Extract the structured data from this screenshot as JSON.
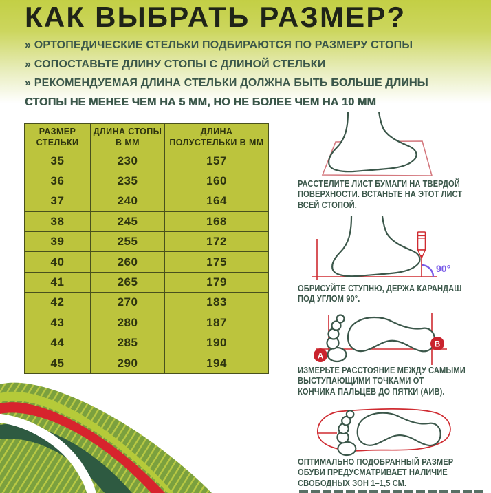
{
  "page": {
    "title": "КАК ВЫБРАТЬ РАЗМЕР?"
  },
  "bullets": [
    {
      "marker": "»",
      "text": "ОРТОПЕДИЧЕСКИЕ СТЕЛЬКИ ПОДБИРАЮТСЯ ПО РАЗМЕРУ СТОПЫ"
    },
    {
      "marker": "»",
      "text": "СОПОСТАВЬТЕ ДЛИНУ СТОПЫ С ДЛИНОЙ СТЕЛЬКИ"
    },
    {
      "marker": "»",
      "text_normal": "РЕКОМЕНДУЕМАЯ ДЛИНА СТЕЛЬКИ ДОЛЖНА БЫТЬ ",
      "text_strong": "БОЛЬШЕ ДЛИНЫ\nСТОПЫ НЕ МЕНЕЕ ЧЕМ НА 5 ММ, НО НЕ БОЛЕЕ ЧЕМ НА 10 ММ"
    }
  ],
  "size_table": {
    "headers": [
      "РАЗМЕР\nСТЕЛЬКИ",
      "ДЛИНА\nСТОПЫ В ММ",
      "ДЛИНА\nПОЛУСТЕЛЬКИ В ММ"
    ],
    "rows": [
      [
        "35",
        "230",
        "157"
      ],
      [
        "36",
        "235",
        "160"
      ],
      [
        "37",
        "240",
        "164"
      ],
      [
        "38",
        "245",
        "168"
      ],
      [
        "39",
        "255",
        "172"
      ],
      [
        "40",
        "260",
        "175"
      ],
      [
        "41",
        "265",
        "179"
      ],
      [
        "42",
        "270",
        "183"
      ],
      [
        "43",
        "280",
        "187"
      ],
      [
        "44",
        "285",
        "190"
      ],
      [
        "45",
        "290",
        "194"
      ]
    ]
  },
  "steps": [
    {
      "icon": "foot-on-paper-sheet",
      "caption": [
        "РАССТЕЛИТЕ ЛИСТ БУМАГИ НА ТВЕРДОЙ",
        "ПОВЕРХНОСТИ. ВСТАНЬТЕ НА ЭТОТ ЛИСТ",
        "ВСЕЙ СТОПОЙ."
      ]
    },
    {
      "icon": "foot-traced-with-pencil",
      "angle_label": "90°",
      "caption": [
        "ОБРИСУЙТЕ СТУПНЮ, ДЕРЖА КАРАНДАШ",
        "ПОД УГЛОМ 90°."
      ]
    },
    {
      "icon": "footprint-with-measure-points",
      "point_a": "А",
      "point_b": "В",
      "caption": [
        "ИЗМЕРЬТЕ РАССТОЯНИЕ МЕЖДУ САМЫМИ",
        "ВЫСТУПАЮЩИМИ ТОЧКАМИ ОТ",
        "КОНЧИКА ПАЛЬЦЕВ ДО ПЯТКИ (АИВ)."
      ]
    },
    {
      "icon": "footprint-inside-insole",
      "caption": [
        "ОПТИМАЛЬНО ПОДОБРАННЫЙ РАЗМЕР",
        "ОБУВИ ПРЕДУСМАТРИВАЕТ НАЛИЧИЕ",
        "СВОБОДНЫХ ЗОН 1–1,5 СМ."
      ]
    }
  ],
  "colors": {
    "accent_red": "#cf2b31",
    "deep_red": "#c9232d",
    "dark_green_text": "#3b574a",
    "table_olive": "#bcc43d",
    "table_border": "#49511d",
    "chartreuse": "#b5ca39",
    "hatch_green": "#7ba03e",
    "hatch_stripe": "#b9c944",
    "wave_dark_green": "#2e5a41",
    "angle_purple": "#7a5ce8",
    "title_ink": "#1f2318"
  }
}
